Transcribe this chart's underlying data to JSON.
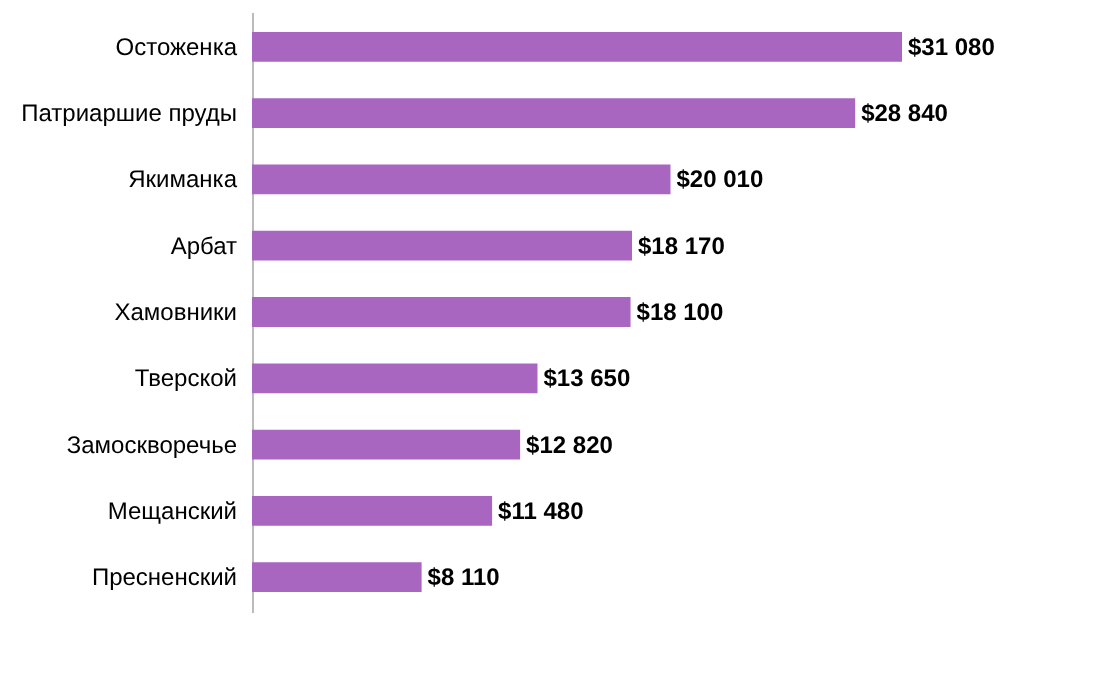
{
  "chart_data": {
    "type": "bar",
    "orientation": "horizontal",
    "categories": [
      "Остоженка",
      "Патриаршие пруды",
      "Якиманка",
      "Арбат",
      "Хамовники",
      "Тверской",
      "Замоскворечье",
      "Мещанский",
      "Пресненский"
    ],
    "values": [
      31080,
      28840,
      20010,
      18170,
      18100,
      13650,
      12820,
      11480,
      8110
    ],
    "value_labels": [
      "$31 080",
      "$28 840",
      "$20 010",
      "$18 170",
      "$18 100",
      "$13 650",
      "$12 820",
      "$11 480",
      "$8 110"
    ],
    "color": "#a866c0"
  }
}
